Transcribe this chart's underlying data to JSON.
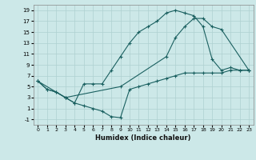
{
  "xlabel": "Humidex (Indice chaleur)",
  "bg_color": "#cce8e8",
  "grid_color": "#afd0d0",
  "line_color": "#1a6060",
  "xlim": [
    -0.5,
    23.5
  ],
  "ylim": [
    -2,
    20
  ],
  "xticks": [
    0,
    1,
    2,
    3,
    4,
    5,
    6,
    7,
    8,
    9,
    10,
    11,
    12,
    13,
    14,
    15,
    16,
    17,
    18,
    19,
    20,
    21,
    22,
    23
  ],
  "yticks": [
    -1,
    1,
    3,
    5,
    7,
    9,
    11,
    13,
    15,
    17,
    19
  ],
  "line1_x": [
    0,
    1,
    2,
    3,
    4,
    5,
    6,
    7,
    8,
    9,
    10,
    11,
    12,
    13,
    14,
    15,
    16,
    17,
    18,
    19,
    20,
    21,
    22,
    23
  ],
  "line1_y": [
    6,
    4.5,
    4,
    3,
    2,
    5.5,
    5.5,
    5.5,
    8,
    10.5,
    13,
    15,
    16,
    17,
    18.5,
    19,
    18.5,
    18,
    16,
    10,
    8,
    8.5,
    8,
    8
  ],
  "line2_x": [
    0,
    1,
    2,
    3,
    4,
    5,
    6,
    7,
    8,
    9,
    10,
    11,
    12,
    13,
    14,
    15,
    16,
    17,
    18,
    19,
    20,
    21,
    22,
    23
  ],
  "line2_y": [
    6,
    4.5,
    4,
    3,
    2,
    1.5,
    1,
    0.5,
    -0.5,
    -0.7,
    4.5,
    5,
    5.5,
    6,
    6.5,
    7,
    7.5,
    7.5,
    7.5,
    7.5,
    7.5,
    8,
    8,
    8
  ],
  "line3_x": [
    0,
    3,
    9,
    14,
    15,
    16,
    17,
    18,
    19,
    20,
    23
  ],
  "line3_y": [
    6,
    3,
    5,
    10.5,
    14,
    16,
    17.5,
    17.5,
    16,
    15.5,
    8
  ]
}
